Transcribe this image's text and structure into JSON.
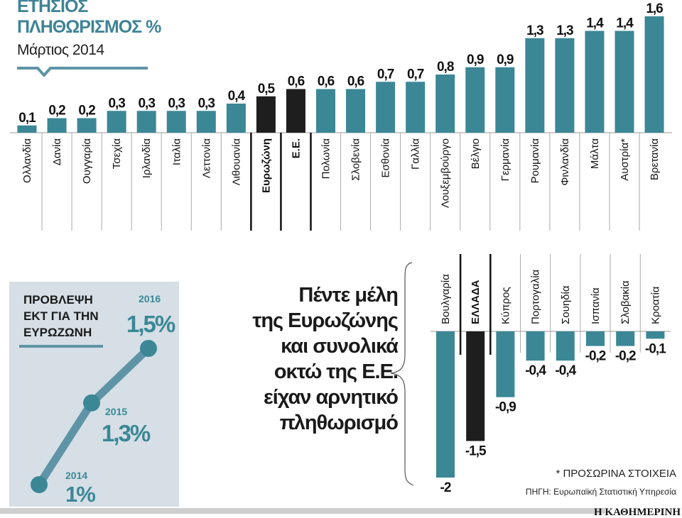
{
  "header": {
    "title_line1": "ΕΤΗΣΙΟΣ",
    "title_line2": "ΠΛΗΘΩΡΙΣΜΟΣ %",
    "subtitle": "Μάρτιος 2014"
  },
  "colors": {
    "bar": "#3b8796",
    "highlight": "#1e1e1e",
    "title": "#3f8396",
    "panel_bg": "#d5dfe5",
    "line": "#5f94a6"
  },
  "chart_data": [
    {
      "type": "bar",
      "title": "ΕΤΗΣΙΟΣ ΠΛΗΘΩΡΙΣΜΟΣ %",
      "subtitle": "Μάρτιος 2014",
      "categories": [
        "Ολλανδία",
        "Δανία",
        "Ουγγαρία",
        "Τσεχία",
        "Ιρλανδία",
        "Ιταλία",
        "Λεττονία",
        "Λιθουανία",
        "Ευρωζώνη",
        "Ε.Ε.",
        "Πολωνία",
        "Σλοβενία",
        "Εσθονία",
        "Γαλλία",
        "Λουξεμβούργο",
        "Βέλγιο",
        "Γερμανία",
        "Ρουμανία",
        "Φινλανδία",
        "Μάλτα",
        "Αυστρία*",
        "Βρετανία"
      ],
      "values": [
        0.1,
        0.2,
        0.2,
        0.3,
        0.3,
        0.3,
        0.3,
        0.4,
        0.5,
        0.6,
        0.6,
        0.6,
        0.7,
        0.7,
        0.8,
        0.9,
        0.9,
        1.3,
        1.3,
        1.4,
        1.4,
        1.6
      ],
      "labels": [
        "0,1",
        "0,2",
        "0,2",
        "0,3",
        "0,3",
        "0,3",
        "0,3",
        "0,4",
        "0,5",
        "0,6",
        "0,6",
        "0,6",
        "0,7",
        "0,7",
        "0,8",
        "0,9",
        "0,9",
        "1,3",
        "1,3",
        "1,4",
        "1,4",
        "1,6"
      ],
      "highlighted": [
        "Ευρωζώνη",
        "Ε.Ε."
      ],
      "ylim": [
        0,
        1.6
      ]
    },
    {
      "type": "bar",
      "categories": [
        "Βουλγαρία",
        "ΕΛΛΑΔΑ",
        "Κύπρος",
        "Πορτογαλία",
        "Σουηδία",
        "Ισπανία",
        "Σλοβακία",
        "Κροατία"
      ],
      "values": [
        -2,
        -1.5,
        -0.9,
        -0.4,
        -0.4,
        -0.2,
        -0.2,
        -0.1
      ],
      "labels": [
        "-2",
        "-1,5",
        "-0,9",
        "-0,4",
        "-0,4",
        "-0,2",
        "-0,2",
        "-0,1"
      ],
      "highlighted": [
        "ΕΛΛΑΔΑ"
      ],
      "ylim": [
        -2,
        0
      ]
    },
    {
      "type": "line",
      "title": "ΠΡΟΒΛΕΨΗ ΕΚΤ ΓΙΑ ΤΗΝ ΕΥΡΩΖΩΝΗ",
      "x": [
        "2014",
        "2015",
        "2016"
      ],
      "values": [
        1.0,
        1.3,
        1.5
      ],
      "labels": [
        "1%",
        "1,3%",
        "1,5%"
      ]
    }
  ],
  "forecast": {
    "title_line1": "ΠΡΟΒΛΕΨΗ",
    "title_line2": "ΕΚΤ ΓΙΑ ΤΗΝ",
    "title_line3": "ΕΥΡΩΖΩΝΗ"
  },
  "callout": {
    "lines": [
      "Πέντε μέλη",
      "της Ευρωζώνης",
      "και συνολικά",
      "οκτώ της Ε.Ε.",
      "είχαν αρνητικό",
      "πληθωρισμό"
    ]
  },
  "footer": {
    "note": "* ΠΡΟΣΩΡΙΝΑ ΣΤΟΙΧΕΙΑ",
    "source": "ΠΗΓΗ: Ευρωπαϊκή Στατιστική Υπηρεσία",
    "brand": "Η ΚΑΘΗΜΕΡΙΝΗ"
  }
}
